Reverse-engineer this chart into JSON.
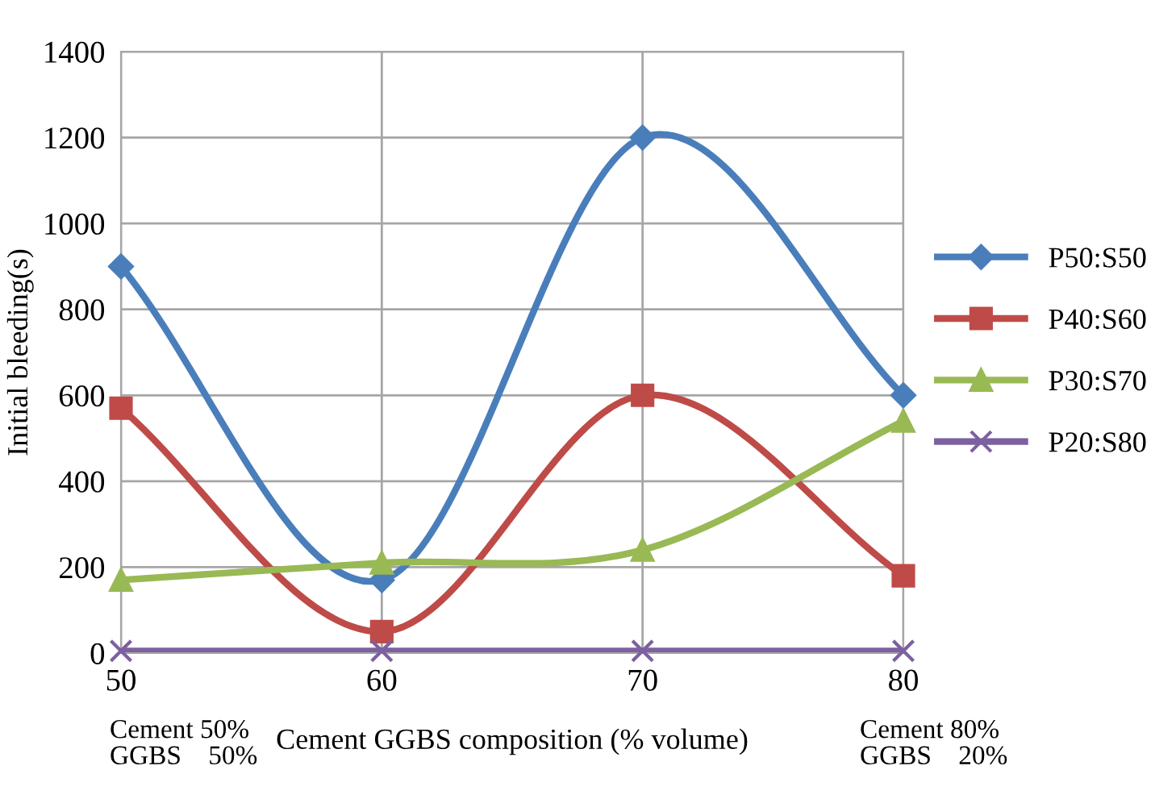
{
  "chart_data": {
    "type": "line",
    "xlabel": "Cement GGBS composition (% volume)",
    "ylabel": "Initial bleeding(s)",
    "x": [
      50,
      60,
      70,
      80
    ],
    "xlim": [
      50,
      80
    ],
    "xticks": [
      50,
      60,
      70,
      80
    ],
    "ylim": [
      0,
      1400
    ],
    "yticks": [
      0,
      200,
      400,
      600,
      800,
      1000,
      1200,
      1400
    ],
    "grid": true,
    "legend": "right",
    "series": [
      {
        "name": "P50:S50",
        "color": "#4a7ebb",
        "marker": "diamond",
        "values": [
          900,
          170,
          1200,
          600
        ]
      },
      {
        "name": "P40:S60",
        "color": "#be4b48",
        "marker": "square",
        "values": [
          570,
          50,
          600,
          180
        ]
      },
      {
        "name": "P30:S70",
        "color": "#98b954",
        "marker": "triangle",
        "values": [
          170,
          210,
          240,
          540
        ]
      },
      {
        "name": "P20:S80",
        "color": "#7d60a0",
        "marker": "cross",
        "values": [
          5,
          5,
          5,
          5
        ]
      }
    ],
    "annotations": [
      "Cement 50%\nGGBS    50%",
      "Cement 80%\nGGBS    20%"
    ]
  }
}
